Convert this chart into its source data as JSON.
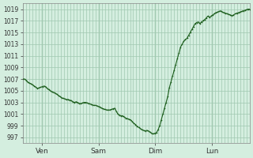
{
  "background_color": "#d4eedf",
  "plot_bg_color": "#d4eedf",
  "grid_color": "#a0c8b0",
  "line_color": "#1a5c1a",
  "marker_color": "#1a5c1a",
  "ylim": [
    996,
    1020
  ],
  "yticks": [
    997,
    999,
    1001,
    1003,
    1005,
    1007,
    1009,
    1011,
    1013,
    1015,
    1017,
    1019
  ],
  "day_labels": [
    "Ven",
    "Sam",
    "Dim",
    "Lun"
  ],
  "day_positions": [
    0.083,
    0.333,
    0.583,
    0.833
  ],
  "data_y": [
    1007,
    1007,
    1006.8,
    1006.5,
    1006.3,
    1006.2,
    1006,
    1005.8,
    1005.6,
    1005.4,
    1005.5,
    1005.6,
    1005.7,
    1005.8,
    1005.7,
    1005.4,
    1005.2,
    1005,
    1004.8,
    1004.7,
    1004.6,
    1004.4,
    1004.2,
    1004.0,
    1003.8,
    1003.7,
    1003.6,
    1003.5,
    1003.5,
    1003.4,
    1003.3,
    1003.1,
    1003.0,
    1003.1,
    1003.0,
    1002.8,
    1002.8,
    1002.9,
    1003.0,
    1003.0,
    1002.9,
    1002.8,
    1002.7,
    1002.6,
    1002.5,
    1002.5,
    1002.4,
    1002.3,
    1002.2,
    1002.0,
    1001.9,
    1001.8,
    1001.7,
    1001.7,
    1001.7,
    1001.8,
    1001.9,
    1002.0,
    1001.5,
    1001.0,
    1000.8,
    1000.7,
    1000.7,
    1000.5,
    1000.3,
    1000.2,
    1000.1,
    1000.0,
    999.7,
    999.4,
    999.2,
    998.9,
    998.7,
    998.5,
    998.3,
    998.2,
    998.1,
    998.2,
    998.1,
    997.9,
    997.7,
    997.6,
    997.7,
    997.8,
    998.3,
    999.0,
    1000.0,
    1001.0,
    1002.0,
    1003.0,
    1004.0,
    1005.5,
    1006.5,
    1007.5,
    1008.5,
    1009.5,
    1010.5,
    1011.5,
    1012.5,
    1013.0,
    1013.5,
    1013.8,
    1014.0,
    1014.5,
    1015.0,
    1015.5,
    1016.0,
    1016.5,
    1016.7,
    1016.8,
    1016.5,
    1016.8,
    1017.0,
    1017.2,
    1017.5,
    1017.8,
    1017.6,
    1017.8,
    1018.0,
    1018.2,
    1018.4,
    1018.5,
    1018.6,
    1018.7,
    1018.5,
    1018.4,
    1018.3,
    1018.2,
    1018.1,
    1018.0,
    1017.9,
    1018.0,
    1018.2,
    1018.3,
    1018.4,
    1018.5,
    1018.6,
    1018.7,
    1018.8,
    1018.9,
    1019.0,
    1019.0
  ]
}
